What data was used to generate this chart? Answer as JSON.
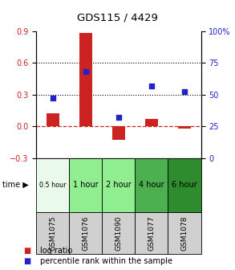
{
  "title": "GDS115 / 4429",
  "samples": [
    "GSM1075",
    "GSM1076",
    "GSM1090",
    "GSM1077",
    "GSM1078"
  ],
  "time_labels": [
    "0.5 hour",
    "1 hour",
    "2 hour",
    "4 hour",
    "6 hour"
  ],
  "time_colors": [
    "#eafaea",
    "#90ee90",
    "#90ee90",
    "#4caf50",
    "#2e8b2e"
  ],
  "log_ratio": [
    0.12,
    0.88,
    -0.13,
    0.07,
    -0.02
  ],
  "percentile": [
    47,
    68,
    32,
    57,
    52
  ],
  "ylim_left": [
    -0.3,
    0.9
  ],
  "ylim_right": [
    0,
    100
  ],
  "yticks_left": [
    -0.3,
    0.0,
    0.3,
    0.6,
    0.9
  ],
  "yticks_right": [
    0,
    25,
    50,
    75,
    100
  ],
  "bar_color": "#cc2222",
  "dot_color": "#2222cc",
  "bar_width": 0.4,
  "background_color": "#ffffff",
  "grid_lines_at": [
    0.3,
    0.6
  ],
  "zero_line_color": "#cc2222",
  "font_color_left": "#cc2222",
  "font_color_right": "#2222cc",
  "gsm_cell_color": "#d0d0d0"
}
